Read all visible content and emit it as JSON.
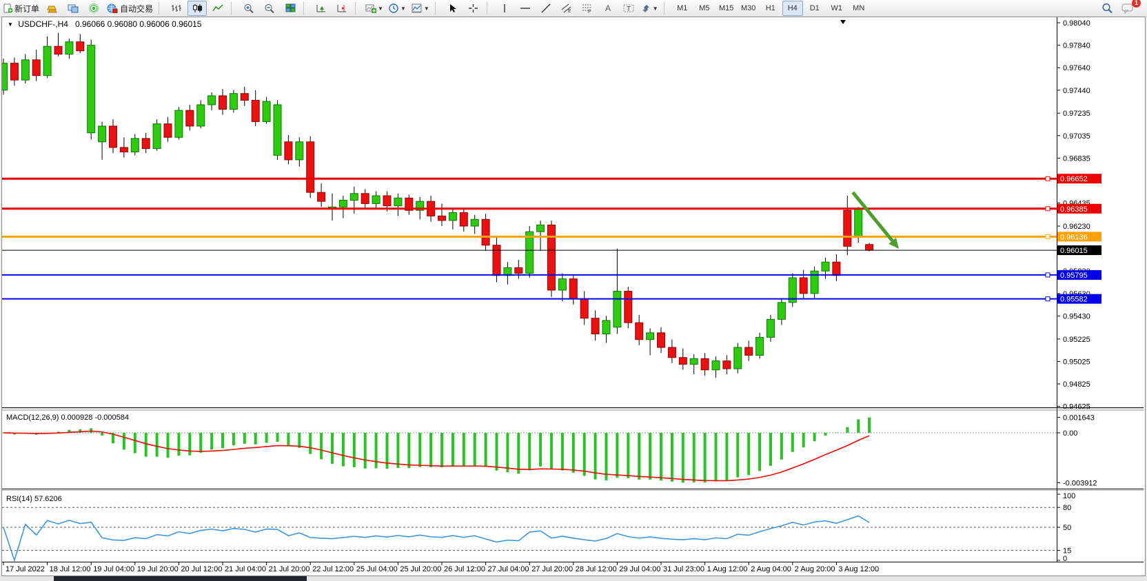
{
  "toolbar": {
    "new_order_label": "新订单",
    "auto_trading_label": "自动交易",
    "timeframes": [
      "M1",
      "M5",
      "M15",
      "M30",
      "H1",
      "H4",
      "D1",
      "W1",
      "MN"
    ],
    "active_timeframe": "H4",
    "notification_count": "1",
    "icons": [
      "new-order-page",
      "gold-bars",
      "market-watch-monitors",
      "signals",
      "globe-autotrade",
      "bar-chart",
      "candlestick-chart",
      "line-chart",
      "zoom-in",
      "zoom-out",
      "tile-windows",
      "chart-shift",
      "auto-scroll",
      "new-chart",
      "periods-clock",
      "templates",
      "cursor",
      "crosshair",
      "vertical-line",
      "horizontal-line",
      "trendline",
      "equidistant-channel",
      "fibonacci",
      "text",
      "text-label",
      "arrows",
      "search",
      "chat"
    ]
  },
  "chart": {
    "title": "USDCHF-,H4",
    "ohlc": "0.96066 0.96080 0.96006 0.96015"
  },
  "macd_panel": {
    "label": "MACD(12,26,9) 0.000928 -0.000584",
    "axis_max": "0.001643",
    "axis_zero": "0.00",
    "axis_min": "-0.003912"
  },
  "rsi_panel": {
    "label": "RSI(14) 57.6206",
    "axis_ticks": [
      "100",
      "80",
      "50",
      "15",
      "0"
    ],
    "dashed_levels": [
      80,
      50,
      15
    ]
  },
  "chart_data": {
    "type": "candlestick",
    "symbol": "USDCHF-",
    "period": "H4",
    "price_axis_ticks": [
      "0.98040",
      "0.97840",
      "0.97640",
      "0.97440",
      "0.97235",
      "0.97035",
      "0.96835",
      "0.96635",
      "0.96435",
      "0.96230",
      "0.96030",
      "0.95830",
      "0.95630",
      "0.95430",
      "0.95225",
      "0.95025",
      "0.94825",
      "0.94625"
    ],
    "time_labels": [
      "17 Jul 2022",
      "18 Jul 12:00",
      "19 Jul 04:00",
      "19 Jul 20:00",
      "20 Jul 12:00",
      "21 Jul 04:00",
      "21 Jul 20:00",
      "22 Jul 12:00",
      "25 Jul 04:00",
      "25 Jul 20:00",
      "26 Jul 12:00",
      "27 Jul 04:00",
      "27 Jul 20:00",
      "28 Jul 12:00",
      "29 Jul 04:00",
      "31 Jul 23:00",
      "1 Aug 12:00",
      "2 Aug 04:00",
      "2 Aug 20:00",
      "3 Aug 12:00"
    ],
    "levels": [
      {
        "price": 0.96652,
        "label": "0.96652",
        "color": "#ee0000",
        "width": 3
      },
      {
        "price": 0.96385,
        "label": "0.96385",
        "color": "#ee0000",
        "width": 3
      },
      {
        "price": 0.96136,
        "label": "0.96136",
        "color": "#ffa200",
        "width": 3
      },
      {
        "price": 0.96015,
        "label": "0.96015",
        "color": "#000000",
        "width": 1,
        "current": true
      },
      {
        "price": 0.95795,
        "label": "0.95795",
        "color": "#0000ee",
        "width": 2
      },
      {
        "price": 0.95582,
        "label": "0.95582",
        "color": "#0000ee",
        "width": 2
      }
    ],
    "annotation_arrow": {
      "from_bar": 77.5,
      "from_price": 0.9653,
      "to_bar": 81.7,
      "to_price": 0.96028,
      "color": "#4d9e2d"
    },
    "colors": {
      "up": "#2ecb11",
      "up_border": "#0a7a06",
      "down": "#ec1010",
      "down_border": "#8f0404",
      "wick": "#000000",
      "macd_hist": "#27c423",
      "macd_signal": "#ff0000",
      "rsi_line": "#3d96e0"
    },
    "candles": [
      [
        0.9744,
        0.9772,
        0.974,
        0.9768
      ],
      [
        0.9768,
        0.9773,
        0.9748,
        0.9753
      ],
      [
        0.9753,
        0.9776,
        0.975,
        0.9771
      ],
      [
        0.9771,
        0.978,
        0.9752,
        0.9757
      ],
      [
        0.9757,
        0.9792,
        0.9755,
        0.9783
      ],
      [
        0.9783,
        0.9795,
        0.9774,
        0.9776
      ],
      [
        0.9776,
        0.979,
        0.9772,
        0.9787
      ],
      [
        0.9787,
        0.9794,
        0.9777,
        0.9779
      ],
      [
        0.9706,
        0.9789,
        0.97,
        0.9784
      ],
      [
        0.9698,
        0.9716,
        0.9682,
        0.9712
      ],
      [
        0.9712,
        0.9718,
        0.9688,
        0.9693
      ],
      [
        0.9693,
        0.9702,
        0.9684,
        0.9689
      ],
      [
        0.9689,
        0.9705,
        0.9686,
        0.9701
      ],
      [
        0.9701,
        0.9706,
        0.9688,
        0.9692
      ],
      [
        0.9692,
        0.9718,
        0.969,
        0.9714
      ],
      [
        0.9714,
        0.972,
        0.9698,
        0.9702
      ],
      [
        0.9702,
        0.9729,
        0.97,
        0.9726
      ],
      [
        0.9726,
        0.9731,
        0.9708,
        0.9712
      ],
      [
        0.9712,
        0.9735,
        0.971,
        0.9731
      ],
      [
        0.9731,
        0.9742,
        0.9726,
        0.9739
      ],
      [
        0.9739,
        0.9745,
        0.9722,
        0.9727
      ],
      [
        0.9727,
        0.9744,
        0.9724,
        0.9741
      ],
      [
        0.9741,
        0.9747,
        0.973,
        0.9735
      ],
      [
        0.9735,
        0.9744,
        0.9712,
        0.9716
      ],
      [
        0.9716,
        0.9738,
        0.9714,
        0.9734
      ],
      [
        0.9686,
        0.9735,
        0.9682,
        0.9731
      ],
      [
        0.9698,
        0.9704,
        0.9678,
        0.9682
      ],
      [
        0.9682,
        0.9702,
        0.9676,
        0.9698
      ],
      [
        0.9698,
        0.9703,
        0.9648,
        0.9653
      ],
      [
        0.9653,
        0.9661,
        0.964,
        0.9645
      ],
      [
        0.9638,
        0.9652,
        0.9628,
        0.964
      ],
      [
        0.964,
        0.965,
        0.963,
        0.9646
      ],
      [
        0.9646,
        0.9658,
        0.9634,
        0.9652
      ],
      [
        0.9652,
        0.9656,
        0.9638,
        0.9643
      ],
      [
        0.9643,
        0.9654,
        0.9639,
        0.965
      ],
      [
        0.965,
        0.9654,
        0.9636,
        0.9641
      ],
      [
        0.9641,
        0.9652,
        0.9632,
        0.9648
      ],
      [
        0.9648,
        0.9651,
        0.9633,
        0.9637
      ],
      [
        0.9637,
        0.9649,
        0.9629,
        0.9645
      ],
      [
        0.9645,
        0.965,
        0.9627,
        0.9632
      ],
      [
        0.9632,
        0.9643,
        0.9623,
        0.9628
      ],
      [
        0.9628,
        0.9639,
        0.962,
        0.9635
      ],
      [
        0.9635,
        0.9638,
        0.9618,
        0.9623
      ],
      [
        0.9623,
        0.9633,
        0.9616,
        0.9629
      ],
      [
        0.9629,
        0.9634,
        0.9601,
        0.9606
      ],
      [
        0.9606,
        0.9613,
        0.9573,
        0.9579
      ],
      [
        0.9579,
        0.9591,
        0.9571,
        0.9586
      ],
      [
        0.9586,
        0.9593,
        0.9576,
        0.9581
      ],
      [
        0.9581,
        0.9623,
        0.9577,
        0.9618
      ],
      [
        0.9618,
        0.9628,
        0.9601,
        0.9624
      ],
      [
        0.9624,
        0.9628,
        0.956,
        0.9566
      ],
      [
        0.9566,
        0.9581,
        0.9556,
        0.9576
      ],
      [
        0.9576,
        0.958,
        0.9553,
        0.9558
      ],
      [
        0.9558,
        0.9565,
        0.9535,
        0.9541
      ],
      [
        0.9541,
        0.9548,
        0.9521,
        0.9527
      ],
      [
        0.9527,
        0.9543,
        0.9519,
        0.9539
      ],
      [
        0.9533,
        0.9603,
        0.9527,
        0.9565
      ],
      [
        0.9565,
        0.9569,
        0.9532,
        0.9537
      ],
      [
        0.9537,
        0.9544,
        0.9517,
        0.9522
      ],
      [
        0.9522,
        0.9532,
        0.9508,
        0.9528
      ],
      [
        0.9528,
        0.9533,
        0.951,
        0.9515
      ],
      [
        0.9515,
        0.9522,
        0.9501,
        0.9506
      ],
      [
        0.9506,
        0.9514,
        0.9495,
        0.95
      ],
      [
        0.95,
        0.9509,
        0.9491,
        0.9505
      ],
      [
        0.9505,
        0.951,
        0.949,
        0.9495
      ],
      [
        0.9495,
        0.9507,
        0.9488,
        0.9503
      ],
      [
        0.9503,
        0.9508,
        0.9491,
        0.9496
      ],
      [
        0.9496,
        0.9519,
        0.9492,
        0.9515
      ],
      [
        0.9515,
        0.9521,
        0.9503,
        0.9508
      ],
      [
        0.9508,
        0.9528,
        0.9505,
        0.9524
      ],
      [
        0.9524,
        0.9544,
        0.952,
        0.954
      ],
      [
        0.954,
        0.9559,
        0.9535,
        0.9555
      ],
      [
        0.9555,
        0.9581,
        0.9551,
        0.9577
      ],
      [
        0.9577,
        0.9584,
        0.9558,
        0.9563
      ],
      [
        0.9563,
        0.9587,
        0.9559,
        0.9583
      ],
      [
        0.9583,
        0.9595,
        0.9576,
        0.9591
      ],
      [
        0.9591,
        0.9598,
        0.9574,
        0.9579
      ],
      [
        0.9637,
        0.965,
        0.9597,
        0.9605
      ],
      [
        0.9613,
        0.964,
        0.9608,
        0.9638
      ],
      [
        0.96066,
        0.9608,
        0.96006,
        0.96015
      ]
    ]
  }
}
